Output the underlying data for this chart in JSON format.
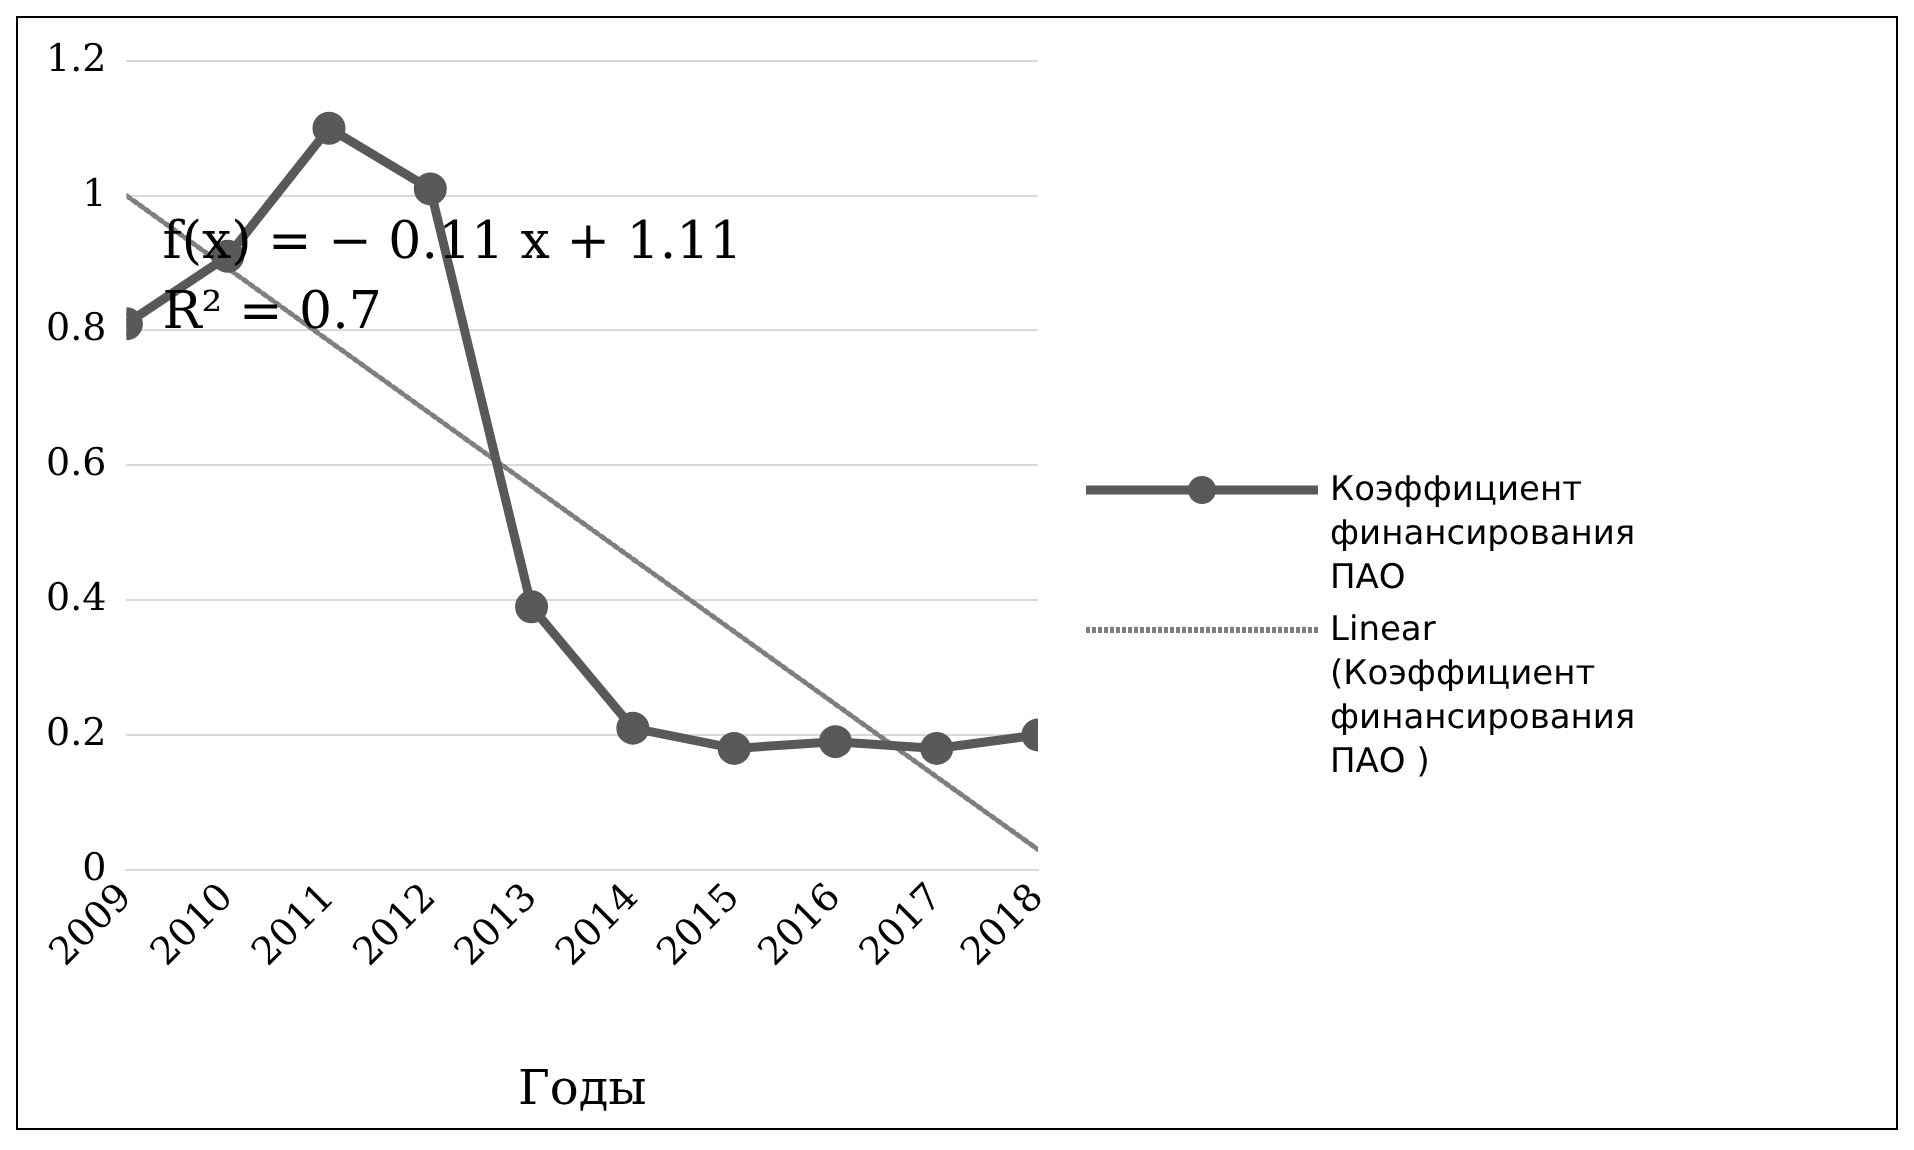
{
  "chart_data": {
    "type": "line",
    "xlabel": "Годы",
    "annotations": [
      "f(x) = − 0.11 x + 1.11",
      "R² = 0.7"
    ],
    "xlim": [
      2009,
      2018
    ],
    "xticks": [
      2009,
      2010,
      2011,
      2012,
      2013,
      2014,
      2015,
      2016,
      2017,
      2018
    ],
    "ylim": [
      0,
      1.2
    ],
    "yticks": [
      0,
      0.2,
      0.4,
      0.6,
      0.8,
      1,
      1.2
    ],
    "grid": "y",
    "legend": "right",
    "marker": "circle",
    "series": [
      {
        "name": "Коэффициент финансирования ПАО",
        "color": "#595959",
        "x": [
          2009,
          2010,
          2011,
          2012,
          2013,
          2014,
          2015,
          2016,
          2017,
          2018
        ],
        "values": [
          0.81,
          0.91,
          1.1,
          1.01,
          0.39,
          0.21,
          0.18,
          0.19,
          0.18,
          0.2
        ]
      },
      {
        "name": "Linear (Коэффициент финансирования ПАО )",
        "type": "line",
        "line_style": "dotted",
        "marker": "none",
        "color": "#7f7f7f",
        "x": [
          2009,
          2018
        ],
        "values": [
          1.0,
          0.03
        ]
      }
    ]
  }
}
